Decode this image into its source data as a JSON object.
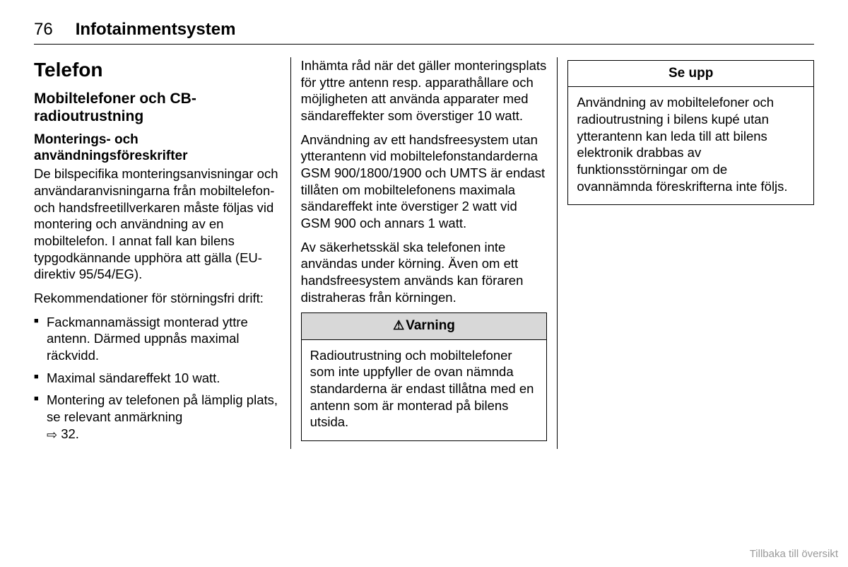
{
  "header": {
    "page_number": "76",
    "section": "Infotainmentsystem"
  },
  "col1": {
    "h1": "Telefon",
    "h2": "Mobiltelefoner och CB-radioutrustning",
    "h3": "Monterings- och användningsföreskrifter",
    "p1": "De bilspecifika monteringsanvisningar och användaranvisningarna från mobiltelefon- och handsfreetillverkaren måste följas vid montering och användning av en mobiltelefon. I annat fall kan bilens typgodkännande upphöra att gälla (EU-direktiv 95/54/EG).",
    "p2": "Rekommendationer för störningsfri drift:",
    "bullets": [
      "Fackmannamässigt monterad yttre antenn. Därmed uppnås maximal räckvidd.",
      "Maximal sändareffekt 10 watt.",
      "Montering av telefonen på lämplig plats, se relevant anmärkning "
    ],
    "bullet3_ref": "32."
  },
  "col2": {
    "p1": "Inhämta råd när det gäller monteringsplats för yttre antenn resp. apparathållare och möjligheten att använda apparater med sändareffekter som överstiger 10 watt.",
    "p2": "Användning av ett handsfreesystem utan ytterantenn vid mobiltelefonstandarderna GSM 900/1800/1900 och UMTS är endast tillåten om mobiltelefonens maximala sändareffekt inte överstiger 2 watt vid GSM 900 och annars 1 watt.",
    "p3": "Av säkerhetsskäl ska telefonen inte användas under körning. Även om ett handsfreesystem används kan föraren distraheras från körningen.",
    "warning_title": "Varning",
    "warning_body": "Radioutrustning och mobiltelefoner som inte uppfyller de ovan nämnda standarderna är endast tillåtna med en antenn som är monterad på bilens utsida."
  },
  "col3": {
    "caution_title": "Se upp",
    "caution_body": "Användning av mobiltelefoner och radioutrustning i bilens kupé utan ytterantenn kan leda till att bilens elektronik drabbas av funktionsstörningar om de ovannämnda föreskrifterna inte följs."
  },
  "footer_link": "Tillbaka till översikt"
}
